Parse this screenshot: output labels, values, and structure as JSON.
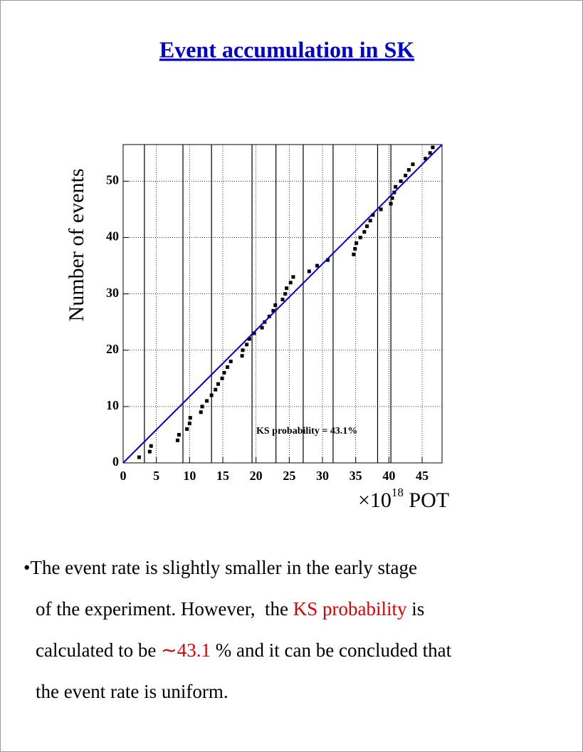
{
  "chart_data": {
    "type": "scatter",
    "title": "Event accumulation in SK",
    "title_color": "#0000cc",
    "y_label": "Number of events",
    "x_label": [
      "×10",
      "18",
      "POT"
    ],
    "xlim": [
      0,
      48
    ],
    "ylim": [
      0,
      56.5
    ],
    "xticks": [
      0,
      5,
      10,
      15,
      20,
      25,
      30,
      35,
      40,
      45
    ],
    "yticks": [
      0,
      10,
      20,
      30,
      40,
      50
    ],
    "grid": true,
    "vertical_lines": {
      "color": "#000000",
      "x": [
        3.2,
        9.0,
        13.3,
        19.4,
        23.0,
        27.1,
        31.6,
        38.3,
        40.3
      ]
    },
    "series": [
      {
        "type": "scatter",
        "color": "#000000",
        "x": [
          2.4,
          4.0,
          4.2,
          8.2,
          8.4,
          9.6,
          10.0,
          10.1,
          11.7,
          11.9,
          12.6,
          13.3,
          13.9,
          14.3,
          14.9,
          15.2,
          15.7,
          16.2,
          17.9,
          18.0,
          18.6,
          19.0,
          19.7,
          20.9,
          21.3,
          22.0,
          22.6,
          22.9,
          24.0,
          24.4,
          24.6,
          25.2,
          25.6,
          28.0,
          29.2,
          30.8,
          34.7,
          34.9,
          35.1,
          35.7,
          36.3,
          36.7,
          37.2,
          37.6,
          38.8,
          40.3,
          40.5,
          40.8,
          41.0,
          41.8,
          42.5,
          43.0,
          43.6,
          45.5,
          46.2,
          46.6
        ],
        "values": [
          1,
          2,
          3,
          4,
          5,
          6,
          7,
          8,
          9,
          10,
          11,
          12,
          13,
          14,
          15,
          16,
          17,
          18,
          19,
          20,
          21,
          22,
          23,
          24,
          25,
          26,
          27,
          28,
          29,
          30,
          31,
          32,
          33,
          34,
          35,
          36,
          37,
          38,
          39,
          40,
          41,
          42,
          43,
          44,
          45,
          46,
          47,
          48,
          49,
          50,
          51,
          52,
          53,
          54,
          55,
          56
        ]
      },
      {
        "type": "line",
        "color": "#0000cc",
        "x": [
          0,
          48
        ],
        "values": [
          0,
          56.5
        ]
      }
    ],
    "annotation": "KS probability = 43.1%"
  },
  "text": {
    "lines": [
      [
        {
          "text": "•The event rate is slightly smaller in the early stage",
          "color": "#000000"
        }
      ],
      [
        {
          "text": "of the experiment. However,  the ",
          "color": "#000000"
        },
        {
          "text": "KS probability",
          "color": "#dd0000"
        },
        {
          "text": " is",
          "color": "#000000"
        }
      ],
      [
        {
          "text": "calculated to be ",
          "color": "#000000"
        },
        {
          "text": "∼43.1",
          "color": "#dd0000"
        },
        {
          "text": " % and it can be concluded that",
          "color": "#000000"
        }
      ],
      [
        {
          "text": "the event rate is uniform.",
          "color": "#000000"
        }
      ]
    ]
  }
}
